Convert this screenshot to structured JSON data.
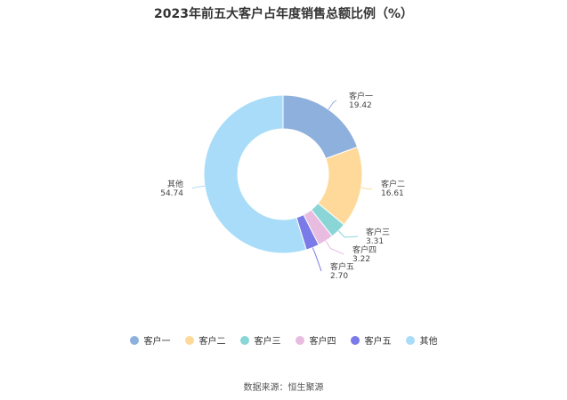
{
  "chart_data": {
    "type": "pie",
    "title": "2023年前五大客户占年度销售总额比例（%）",
    "donut": true,
    "slices": [
      {
        "label": "客户一",
        "value": 19.42,
        "color": "#8eb0dc"
      },
      {
        "label": "客户二",
        "value": 16.61,
        "color": "#ffd99a"
      },
      {
        "label": "客户三",
        "value": 3.31,
        "color": "#8ad6d6"
      },
      {
        "label": "客户四",
        "value": 3.22,
        "color": "#e8bce0"
      },
      {
        "label": "客户五",
        "value": 2.7,
        "color": "#7a7ae8"
      },
      {
        "label": "其他",
        "value": 54.74,
        "color": "#a8dcf8"
      }
    ],
    "legend_position": "bottom"
  },
  "source": "数据来源：恒生聚源"
}
